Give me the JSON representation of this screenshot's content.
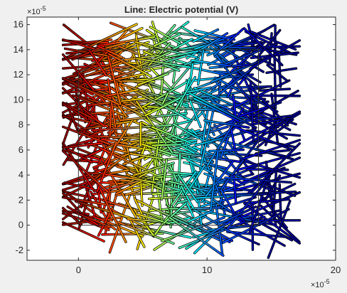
{
  "chart_data": {
    "type": "line",
    "title": "Line: Electric potential (V)",
    "xlabel": "",
    "ylabel": "",
    "x_multiplier": "×10",
    "x_exponent": "-5",
    "y_multiplier": "×10",
    "y_exponent": "-5",
    "xlim": [
      -4,
      20
    ],
    "ylim": [
      -2.8,
      16.6
    ],
    "x_ticks": [
      0,
      10,
      20
    ],
    "x_tick_labels": [
      "0",
      "10",
      "20"
    ],
    "y_ticks": [
      -2,
      0,
      2,
      4,
      6,
      8,
      10,
      12,
      14,
      16
    ],
    "y_tick_labels": [
      "-2",
      "0",
      "2",
      "4",
      "6",
      "8",
      "10",
      "12",
      "14",
      "16"
    ],
    "domain_box": {
      "x": [
        0,
        14
      ],
      "y": [
        0,
        14
      ]
    },
    "grid": false,
    "colormap": "jet (red = high potential at x = 0, dark blue = low potential at x = 14)",
    "colors": {
      "background": "#f0f0f0",
      "axes_background": "#ffffff",
      "axis": "#262626",
      "domain_box": "#333333",
      "segment_outline": "#000000"
    }
  }
}
